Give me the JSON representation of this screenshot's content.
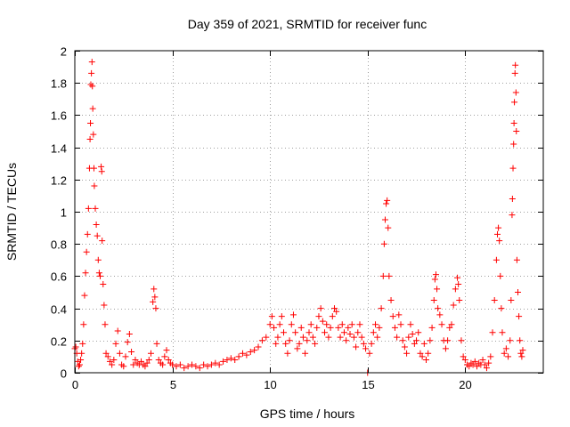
{
  "chart_data": {
    "type": "scatter",
    "title": "Day 359 of 2021, SRMTID for receiver func",
    "xlabel": "GPS time / hours",
    "ylabel": "SRMTID / TECUs",
    "xlim": [
      0,
      24
    ],
    "ylim": [
      0,
      2
    ],
    "xticks": [
      0,
      5,
      10,
      15,
      20
    ],
    "xtick_labels": [
      "0",
      "5",
      "10",
      "15",
      "20"
    ],
    "yticks": [
      0,
      0.2,
      0.4,
      0.6,
      0.8,
      1,
      1.2,
      1.4,
      1.6,
      1.8,
      2
    ],
    "ytick_labels": [
      "0",
      "0.2",
      "0.4",
      "0.6",
      "0.8",
      "1",
      "1.2",
      "1.4",
      "1.6",
      "1.8",
      "2"
    ],
    "grid": true,
    "marker": "plus",
    "series": [
      {
        "name": "SRMTID",
        "color": "#ff0000",
        "points": [
          [
            0.0,
            0.15
          ],
          [
            0.05,
            0.16
          ],
          [
            0.1,
            0.12
          ],
          [
            0.15,
            0.07
          ],
          [
            0.2,
            0.04
          ],
          [
            0.25,
            0.05
          ],
          [
            0.3,
            0.08
          ],
          [
            0.35,
            0.12
          ],
          [
            0.4,
            0.18
          ],
          [
            0.45,
            0.3
          ],
          [
            0.5,
            0.48
          ],
          [
            0.55,
            0.62
          ],
          [
            0.6,
            0.75
          ],
          [
            0.65,
            0.86
          ],
          [
            0.7,
            1.02
          ],
          [
            0.75,
            1.27
          ],
          [
            0.78,
            1.45
          ],
          [
            0.8,
            1.55
          ],
          [
            0.82,
            1.79
          ],
          [
            0.85,
            1.86
          ],
          [
            0.88,
            1.93
          ],
          [
            0.9,
            1.78
          ],
          [
            0.92,
            1.64
          ],
          [
            0.95,
            1.48
          ],
          [
            0.98,
            1.27
          ],
          [
            1.0,
            1.16
          ],
          [
            1.05,
            1.02
          ],
          [
            1.1,
            0.92
          ],
          [
            1.15,
            0.85
          ],
          [
            1.2,
            0.7
          ],
          [
            1.25,
            0.62
          ],
          [
            1.3,
            0.6
          ],
          [
            1.35,
            1.28
          ],
          [
            1.38,
            1.25
          ],
          [
            1.4,
            0.82
          ],
          [
            1.45,
            0.55
          ],
          [
            1.5,
            0.42
          ],
          [
            1.55,
            0.3
          ],
          [
            1.6,
            0.12
          ],
          [
            1.7,
            0.1
          ],
          [
            1.8,
            0.07
          ],
          [
            1.9,
            0.05
          ],
          [
            2.0,
            0.08
          ],
          [
            2.1,
            0.18
          ],
          [
            2.2,
            0.26
          ],
          [
            2.3,
            0.12
          ],
          [
            2.4,
            0.05
          ],
          [
            2.5,
            0.04
          ],
          [
            2.6,
            0.1
          ],
          [
            2.7,
            0.19
          ],
          [
            2.8,
            0.24
          ],
          [
            2.9,
            0.13
          ],
          [
            3.0,
            0.05
          ],
          [
            3.1,
            0.08
          ],
          [
            3.2,
            0.06
          ],
          [
            3.3,
            0.05
          ],
          [
            3.4,
            0.07
          ],
          [
            3.5,
            0.05
          ],
          [
            3.6,
            0.04
          ],
          [
            3.7,
            0.06
          ],
          [
            3.8,
            0.08
          ],
          [
            3.9,
            0.12
          ],
          [
            4.0,
            0.44
          ],
          [
            4.05,
            0.52
          ],
          [
            4.1,
            0.47
          ],
          [
            4.15,
            0.4
          ],
          [
            4.2,
            0.18
          ],
          [
            4.3,
            0.08
          ],
          [
            4.4,
            0.06
          ],
          [
            4.5,
            0.05
          ],
          [
            4.6,
            0.1
          ],
          [
            4.7,
            0.14
          ],
          [
            4.8,
            0.08
          ],
          [
            4.9,
            0.06
          ],
          [
            5.0,
            0.05
          ],
          [
            5.2,
            0.04
          ],
          [
            5.4,
            0.05
          ],
          [
            5.6,
            0.03
          ],
          [
            5.8,
            0.04
          ],
          [
            6.0,
            0.05
          ],
          [
            6.2,
            0.04
          ],
          [
            6.4,
            0.03
          ],
          [
            6.6,
            0.05
          ],
          [
            6.8,
            0.04
          ],
          [
            7.0,
            0.05
          ],
          [
            7.2,
            0.06
          ],
          [
            7.4,
            0.05
          ],
          [
            7.6,
            0.07
          ],
          [
            7.8,
            0.08
          ],
          [
            8.0,
            0.09
          ],
          [
            8.2,
            0.08
          ],
          [
            8.4,
            0.1
          ],
          [
            8.6,
            0.12
          ],
          [
            8.8,
            0.11
          ],
          [
            9.0,
            0.13
          ],
          [
            9.2,
            0.14
          ],
          [
            9.4,
            0.16
          ],
          [
            9.6,
            0.2
          ],
          [
            9.8,
            0.22
          ],
          [
            10.0,
            0.3
          ],
          [
            10.1,
            0.35
          ],
          [
            10.2,
            0.28
          ],
          [
            10.3,
            0.18
          ],
          [
            10.4,
            0.22
          ],
          [
            10.5,
            0.3
          ],
          [
            10.6,
            0.35
          ],
          [
            10.7,
            0.25
          ],
          [
            10.8,
            0.18
          ],
          [
            10.9,
            0.12
          ],
          [
            11.0,
            0.2
          ],
          [
            11.1,
            0.3
          ],
          [
            11.2,
            0.36
          ],
          [
            11.3,
            0.25
          ],
          [
            11.4,
            0.15
          ],
          [
            11.5,
            0.18
          ],
          [
            11.6,
            0.28
          ],
          [
            11.7,
            0.22
          ],
          [
            11.8,
            0.12
          ],
          [
            11.9,
            0.2
          ],
          [
            12.0,
            0.25
          ],
          [
            12.1,
            0.3
          ],
          [
            12.2,
            0.22
          ],
          [
            12.3,
            0.18
          ],
          [
            12.4,
            0.28
          ],
          [
            12.5,
            0.35
          ],
          [
            12.6,
            0.4
          ],
          [
            12.7,
            0.32
          ],
          [
            12.8,
            0.25
          ],
          [
            12.9,
            0.3
          ],
          [
            13.0,
            0.22
          ],
          [
            13.1,
            0.28
          ],
          [
            13.2,
            0.35
          ],
          [
            13.3,
            0.4
          ],
          [
            13.4,
            0.38
          ],
          [
            13.5,
            0.28
          ],
          [
            13.6,
            0.22
          ],
          [
            13.7,
            0.3
          ],
          [
            13.8,
            0.25
          ],
          [
            13.9,
            0.2
          ],
          [
            14.0,
            0.28
          ],
          [
            14.1,
            0.24
          ],
          [
            14.2,
            0.3
          ],
          [
            14.3,
            0.22
          ],
          [
            14.4,
            0.16
          ],
          [
            14.5,
            0.25
          ],
          [
            14.6,
            0.3
          ],
          [
            14.7,
            0.22
          ],
          [
            14.8,
            0.18
          ],
          [
            14.9,
            0.15
          ],
          [
            15.0,
            0.0
          ],
          [
            15.1,
            0.12
          ],
          [
            15.2,
            0.18
          ],
          [
            15.3,
            0.25
          ],
          [
            15.4,
            0.3
          ],
          [
            15.5,
            0.22
          ],
          [
            15.6,
            0.28
          ],
          [
            15.7,
            0.4
          ],
          [
            15.8,
            0.6
          ],
          [
            15.85,
            0.8
          ],
          [
            15.9,
            0.95
          ],
          [
            15.95,
            1.05
          ],
          [
            16.0,
            1.07
          ],
          [
            16.05,
            0.9
          ],
          [
            16.1,
            0.6
          ],
          [
            16.2,
            0.45
          ],
          [
            16.3,
            0.35
          ],
          [
            16.4,
            0.28
          ],
          [
            16.5,
            0.22
          ],
          [
            16.6,
            0.36
          ],
          [
            16.7,
            0.3
          ],
          [
            16.8,
            0.2
          ],
          [
            16.9,
            0.16
          ],
          [
            17.0,
            0.12
          ],
          [
            17.1,
            0.22
          ],
          [
            17.2,
            0.3
          ],
          [
            17.3,
            0.24
          ],
          [
            17.4,
            0.18
          ],
          [
            17.5,
            0.2
          ],
          [
            17.6,
            0.25
          ],
          [
            17.7,
            0.12
          ],
          [
            17.8,
            0.1
          ],
          [
            17.9,
            0.18
          ],
          [
            18.0,
            0.08
          ],
          [
            18.1,
            0.12
          ],
          [
            18.2,
            0.2
          ],
          [
            18.3,
            0.28
          ],
          [
            18.4,
            0.45
          ],
          [
            18.45,
            0.58
          ],
          [
            18.5,
            0.61
          ],
          [
            18.55,
            0.52
          ],
          [
            18.6,
            0.4
          ],
          [
            18.7,
            0.36
          ],
          [
            18.8,
            0.3
          ],
          [
            18.9,
            0.2
          ],
          [
            19.0,
            0.15
          ],
          [
            19.1,
            0.2
          ],
          [
            19.2,
            0.28
          ],
          [
            19.3,
            0.3
          ],
          [
            19.4,
            0.42
          ],
          [
            19.5,
            0.52
          ],
          [
            19.6,
            0.59
          ],
          [
            19.65,
            0.55
          ],
          [
            19.7,
            0.45
          ],
          [
            19.8,
            0.2
          ],
          [
            19.9,
            0.1
          ],
          [
            20.0,
            0.08
          ],
          [
            20.1,
            0.05
          ],
          [
            20.2,
            0.04
          ],
          [
            20.3,
            0.06
          ],
          [
            20.4,
            0.05
          ],
          [
            20.5,
            0.07
          ],
          [
            20.6,
            0.04
          ],
          [
            20.7,
            0.06
          ],
          [
            20.8,
            0.05
          ],
          [
            20.9,
            0.08
          ],
          [
            21.0,
            0.05
          ],
          [
            21.1,
            0.03
          ],
          [
            21.2,
            0.06
          ],
          [
            21.3,
            0.1
          ],
          [
            21.4,
            0.25
          ],
          [
            21.5,
            0.45
          ],
          [
            21.6,
            0.7
          ],
          [
            21.65,
            0.86
          ],
          [
            21.7,
            0.9
          ],
          [
            21.75,
            0.82
          ],
          [
            21.8,
            0.6
          ],
          [
            21.85,
            0.4
          ],
          [
            21.9,
            0.25
          ],
          [
            22.0,
            0.12
          ],
          [
            22.1,
            0.15
          ],
          [
            22.2,
            0.1
          ],
          [
            22.3,
            0.2
          ],
          [
            22.35,
            0.45
          ],
          [
            22.4,
            0.98
          ],
          [
            22.42,
            1.08
          ],
          [
            22.45,
            1.27
          ],
          [
            22.48,
            1.42
          ],
          [
            22.5,
            1.55
          ],
          [
            22.52,
            1.68
          ],
          [
            22.55,
            1.86
          ],
          [
            22.57,
            1.91
          ],
          [
            22.6,
            1.74
          ],
          [
            22.62,
            1.5
          ],
          [
            22.65,
            0.7
          ],
          [
            22.7,
            0.5
          ],
          [
            22.75,
            0.35
          ],
          [
            22.8,
            0.2
          ],
          [
            22.85,
            0.12
          ],
          [
            22.9,
            0.1
          ],
          [
            22.95,
            0.14
          ]
        ]
      }
    ]
  }
}
